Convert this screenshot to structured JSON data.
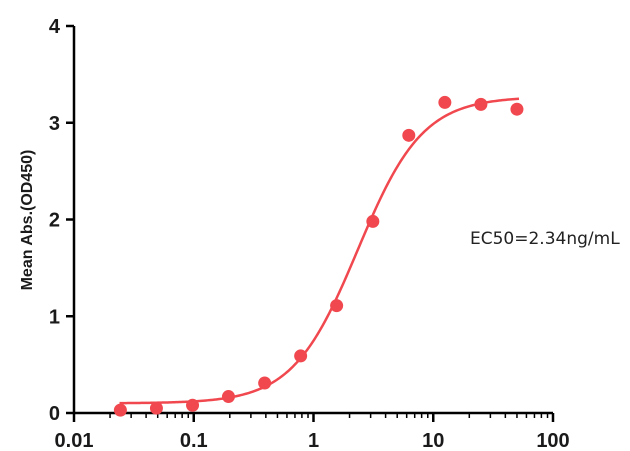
{
  "chart_data": {
    "type": "scatter",
    "x_scale": "log",
    "xlim": [
      0.01,
      100
    ],
    "ylim": [
      0,
      4
    ],
    "x_ticks": [
      "0.01",
      "0.1",
      "1",
      "10",
      "100"
    ],
    "y_ticks": [
      "0",
      "1",
      "2",
      "3",
      "4"
    ],
    "xlabel": "",
    "ylabel": "Mean Abs.(OD450)",
    "annotation": "EC50=2.34ng/mL",
    "grid": false,
    "legend": "none",
    "series": [
      {
        "color": "#f0484e",
        "points": [
          {
            "x": 0.0244,
            "y": 0.03
          },
          {
            "x": 0.0488,
            "y": 0.05
          },
          {
            "x": 0.0977,
            "y": 0.08
          },
          {
            "x": 0.195,
            "y": 0.17
          },
          {
            "x": 0.391,
            "y": 0.31
          },
          {
            "x": 0.781,
            "y": 0.59
          },
          {
            "x": 1.56,
            "y": 1.11
          },
          {
            "x": 3.13,
            "y": 1.98
          },
          {
            "x": 6.25,
            "y": 2.87
          },
          {
            "x": 12.5,
            "y": 3.21
          },
          {
            "x": 25,
            "y": 3.19
          },
          {
            "x": 50,
            "y": 3.14
          }
        ],
        "fit": {
          "model": "4PL",
          "bottom": 0.1,
          "top": 3.27,
          "ec50": 2.34,
          "hill": 1.6
        }
      }
    ]
  }
}
